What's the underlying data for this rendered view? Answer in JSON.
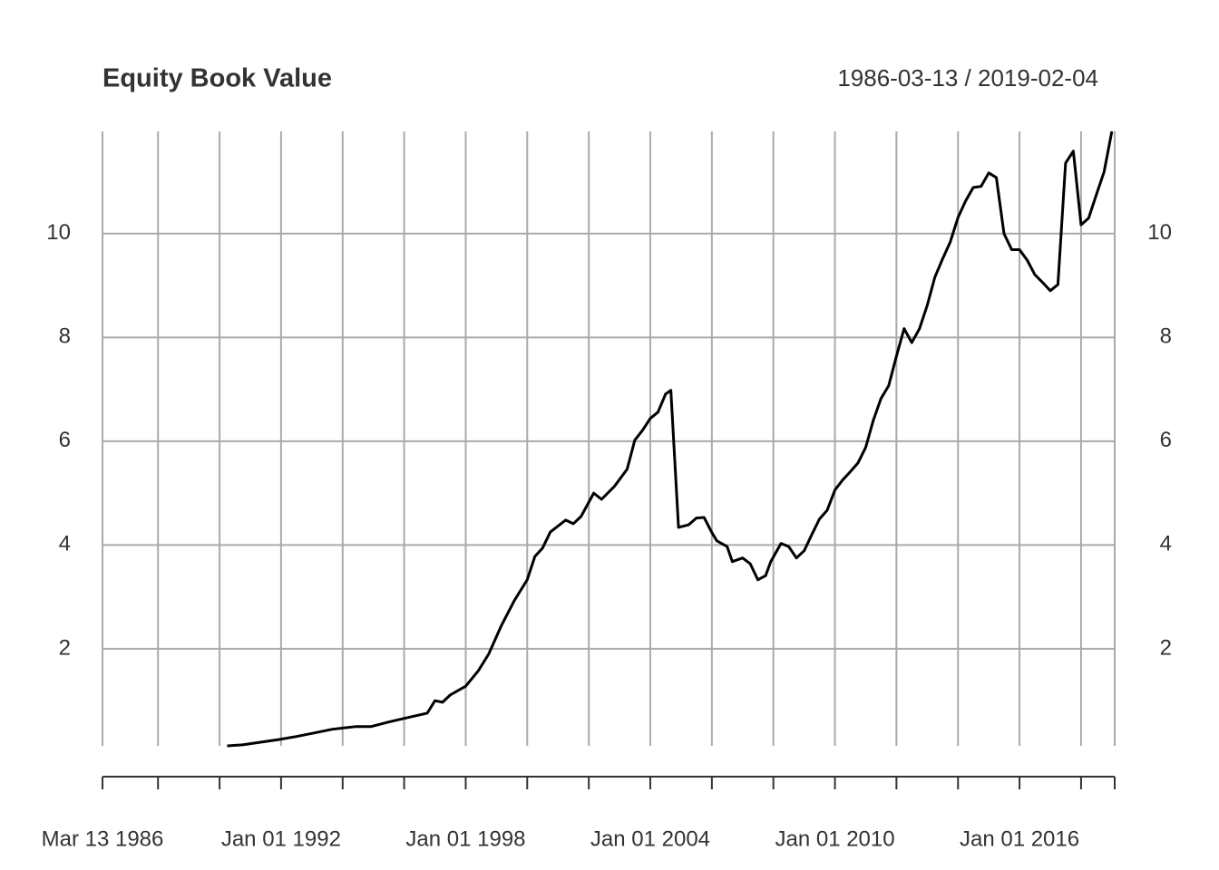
{
  "chart_data": {
    "type": "line",
    "title": "Equity Book Value",
    "subtitle": "1986-03-13 / 2019-02-04",
    "x": [
      "1990-04-01",
      "1990-10-01",
      "1991-05-01",
      "1991-12-01",
      "1992-07-01",
      "1993-02-01",
      "1993-09-01",
      "1994-06-01",
      "1994-12-01",
      "1995-07-01",
      "1996-02-01",
      "1996-10-01",
      "1997-01-01",
      "1997-04-01",
      "1997-07-01",
      "1998-01-01",
      "1998-06-01",
      "1998-10-01",
      "1999-03-01",
      "1999-08-01",
      "2000-01-01",
      "2000-04-01",
      "2000-07-01",
      "2000-10-01",
      "2001-04-01",
      "2001-07-01",
      "2001-10-01",
      "2002-03-01",
      "2002-06-01",
      "2002-11-01",
      "2003-04-01",
      "2003-07-01",
      "2003-10-01",
      "2004-01-01",
      "2004-04-01",
      "2004-07-01",
      "2004-09-01",
      "2004-12-01",
      "2005-04-01",
      "2005-07-01",
      "2005-10-01",
      "2006-01-01",
      "2006-03-01",
      "2006-07-01",
      "2006-09-01",
      "2007-01-01",
      "2007-04-01",
      "2007-07-01",
      "2007-10-01",
      "2007-12-01",
      "2008-04-01",
      "2008-07-01",
      "2008-10-01",
      "2009-01-01",
      "2009-04-01",
      "2009-07-01",
      "2009-10-01",
      "2010-01-01",
      "2010-04-01",
      "2010-07-01",
      "2010-10-01",
      "2011-01-01",
      "2011-04-01",
      "2011-07-01",
      "2011-10-01",
      "2012-01-01",
      "2012-04-01",
      "2012-07-01",
      "2012-10-01",
      "2013-01-01",
      "2013-04-01",
      "2013-07-01",
      "2013-10-01",
      "2014-01-01",
      "2014-04-01",
      "2014-07-01",
      "2014-10-01",
      "2015-01-01",
      "2015-04-01",
      "2015-07-01",
      "2015-10-01",
      "2016-01-01",
      "2016-04-01",
      "2016-07-01",
      "2016-10-01",
      "2017-01-01",
      "2017-04-01",
      "2017-07-01",
      "2017-10-01",
      "2018-01-01",
      "2018-04-01",
      "2018-07-01",
      "2018-10-01",
      "2019-01-01"
    ],
    "values": [
      0.13,
      0.15,
      0.2,
      0.25,
      0.31,
      0.38,
      0.45,
      0.5,
      0.5,
      0.59,
      0.67,
      0.76,
      1.0,
      0.97,
      1.11,
      1.28,
      1.58,
      1.9,
      2.45,
      2.93,
      3.33,
      3.78,
      3.94,
      4.25,
      4.48,
      4.41,
      4.55,
      5.0,
      4.88,
      5.13,
      5.46,
      6.02,
      6.21,
      6.44,
      6.56,
      6.91,
      6.98,
      4.34,
      4.39,
      4.52,
      4.53,
      4.24,
      4.08,
      3.97,
      3.68,
      3.75,
      3.64,
      3.33,
      3.41,
      3.68,
      4.03,
      3.97,
      3.75,
      3.89,
      4.2,
      4.5,
      4.67,
      5.06,
      5.25,
      5.41,
      5.58,
      5.88,
      6.4,
      6.82,
      7.07,
      7.64,
      8.17,
      7.9,
      8.17,
      8.62,
      9.16,
      9.51,
      9.84,
      10.31,
      10.63,
      10.89,
      10.91,
      11.17,
      11.08,
      10.0,
      9.69,
      9.69,
      9.49,
      9.21,
      9.06,
      8.9,
      9.02,
      11.36,
      11.59,
      10.17,
      10.3,
      10.75,
      11.19,
      11.97
    ],
    "color": "#000000",
    "xlim": [
      "1986-03-13",
      "2019-02-04"
    ],
    "xticks": [
      {
        "value": "1986-03-13",
        "label": "Mar 13 1986"
      },
      {
        "value": "1992-01-01",
        "label": "Jan 01 1992"
      },
      {
        "value": "1998-01-01",
        "label": "Jan 01 1998"
      },
      {
        "value": "2004-01-01",
        "label": "Jan 01 2004"
      },
      {
        "value": "2010-01-01",
        "label": "Jan 01 2010"
      },
      {
        "value": "2016-01-01",
        "label": "Jan 01 2016"
      }
    ],
    "xminorticks": [
      "1988-01-01",
      "1990-01-01",
      "1994-01-01",
      "1996-01-01",
      "2000-01-01",
      "2002-01-01",
      "2006-01-01",
      "2008-01-01",
      "2012-01-01",
      "2014-01-01",
      "2018-01-01",
      "2019-02-04"
    ],
    "ylim": [
      0.13,
      11.97
    ],
    "yticks": [
      2,
      4,
      6,
      8,
      10
    ],
    "grid": true
  }
}
